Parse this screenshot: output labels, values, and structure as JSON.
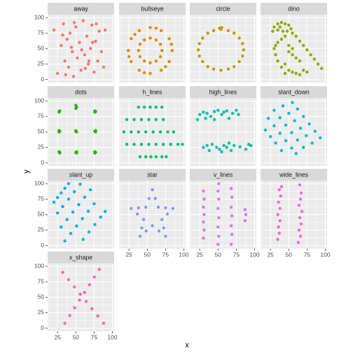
{
  "chart_data": {
    "type": "scatter",
    "xlabel": "x",
    "ylabel": "y",
    "xlim": [
      11.4,
      102.4
    ],
    "ylim": [
      -4.97,
      104.7
    ],
    "xticks": [
      25,
      50,
      75,
      100
    ],
    "yticks": [
      0,
      25,
      50,
      75,
      100
    ],
    "grid": true,
    "facets": [
      {
        "name": "away",
        "color": "#F8766D",
        "x": [
          20,
          25,
          30,
          33,
          35,
          38,
          40,
          42,
          45,
          47,
          50,
          52,
          55,
          57,
          60,
          62,
          65,
          67,
          70,
          72,
          75,
          77,
          80,
          82,
          85,
          88,
          90,
          32,
          44,
          58,
          68,
          78,
          36,
          48,
          63,
          73
        ],
        "y": [
          80,
          10,
          55,
          90,
          30,
          65,
          20,
          75,
          45,
          5,
          85,
          35,
          60,
          15,
          95,
          40,
          70,
          25,
          50,
          88,
          12,
          62,
          30,
          78,
          45,
          20,
          80,
          72,
          52,
          48,
          30,
          90,
          8,
          92,
          18,
          60
        ]
      },
      {
        "name": "bullseye",
        "color": "#E18A00",
        "x": [
          84,
          80,
          69,
          54,
          39,
          28,
          24,
          28,
          39,
          54,
          69,
          80,
          70,
          68,
          62,
          54,
          46,
          40,
          38,
          40,
          46,
          54,
          62,
          68,
          83,
          62,
          33,
          25,
          46,
          75
        ],
        "y": [
          47,
          66,
          79,
          84,
          79,
          66,
          47,
          29,
          15,
          10,
          15,
          29,
          47,
          57,
          64,
          67,
          64,
          57,
          47,
          37,
          30,
          27,
          30,
          37,
          57,
          83,
          73,
          37,
          11,
          21
        ]
      },
      {
        "name": "circle",
        "color": "#BE9C00",
        "x": [
          85,
          83.5,
          79,
          72,
          64,
          54,
          44,
          36,
          29,
          24.5,
          23,
          24.5,
          29,
          36,
          44,
          54,
          64,
          72,
          79,
          83.5,
          55,
          52
        ],
        "y": [
          48,
          58,
          67,
          75,
          79,
          81,
          79,
          75,
          67,
          58,
          48,
          38,
          29,
          21,
          17,
          15,
          17,
          21,
          29,
          38,
          84,
          83
        ]
      },
      {
        "name": "dino",
        "color": "#8CAB00",
        "x": [
          30,
          35,
          40,
          45,
          50,
          53,
          48,
          42,
          35,
          28,
          45,
          40,
          35,
          32,
          30,
          32,
          35,
          40,
          45,
          55,
          60,
          65,
          70,
          75,
          80,
          85,
          90,
          95,
          50,
          55,
          60,
          65,
          50,
          55,
          60,
          65,
          70,
          75,
          45,
          50,
          55,
          38
        ],
        "y": [
          85,
          90,
          92,
          90,
          88,
          82,
          78,
          78,
          80,
          78,
          70,
          65,
          60,
          55,
          50,
          40,
          30,
          20,
          10,
          75,
          70,
          62,
          55,
          48,
          40,
          33,
          25,
          18,
          45,
          40,
          35,
          30,
          15,
          12,
          10,
          8,
          15,
          12,
          25,
          55,
          50,
          85
        ]
      },
      {
        "name": "dots",
        "color": "#24B700",
        "x": [
          27,
          28,
          27,
          27,
          28,
          27,
          28,
          27,
          28,
          50,
          51,
          50,
          50,
          51,
          50,
          51,
          50,
          51,
          76,
          77,
          76,
          77,
          76,
          77,
          76,
          77,
          76
        ],
        "y": [
          83,
          84,
          82,
          52,
          51,
          50,
          17,
          18,
          16,
          93,
          90,
          88,
          52,
          50,
          51,
          18,
          17,
          16,
          84,
          83,
          82,
          52,
          51,
          50,
          18,
          17,
          16
        ]
      },
      {
        "name": "h_lines",
        "color": "#00BE70",
        "x": [
          40,
          48,
          55,
          62,
          70,
          76,
          22,
          32,
          42,
          52,
          62,
          72,
          82,
          92,
          98,
          18,
          28,
          38,
          48,
          58,
          68,
          78,
          86,
          22,
          32,
          42,
          52,
          62,
          72,
          38,
          46,
          54,
          62,
          70
        ],
        "y": [
          10,
          10,
          10,
          10,
          10,
          10,
          30,
          30,
          30,
          30,
          30,
          30,
          30,
          30,
          30,
          50,
          50,
          50,
          50,
          50,
          50,
          50,
          50,
          70,
          70,
          70,
          70,
          70,
          70,
          90,
          90,
          90,
          90,
          90
        ]
      },
      {
        "name": "high_lines",
        "color": "#00C1AB",
        "x": [
          22,
          25,
          30,
          35,
          40,
          45,
          50,
          55,
          58,
          62,
          65,
          70,
          75,
          78,
          45,
          33,
          30,
          35,
          38,
          42,
          48,
          52,
          55,
          58,
          62,
          65,
          68,
          72,
          80,
          88,
          95,
          92
        ],
        "y": [
          70,
          78,
          82,
          80,
          75,
          83,
          85,
          78,
          82,
          84,
          72,
          80,
          85,
          78,
          70,
          72,
          25,
          28,
          20,
          30,
          25,
          22,
          18,
          28,
          25,
          32,
          20,
          28,
          26,
          22,
          28,
          30
        ]
      },
      {
        "name": "slant_down",
        "color": "#00BBDA",
        "x": [
          55,
          62,
          70,
          78,
          86,
          93,
          42,
          50,
          58,
          66,
          74,
          82,
          30,
          38,
          46,
          54,
          62,
          70,
          22,
          30,
          38,
          46,
          54,
          60,
          18,
          25,
          32,
          40
        ],
        "y": [
          97.5,
          87,
          75,
          63,
          51,
          40.5,
          92,
          80,
          68,
          56,
          44,
          32,
          85,
          73,
          61,
          49,
          37,
          25,
          72,
          60,
          48,
          36,
          24,
          15,
          53,
          42.5,
          32,
          20
        ]
      },
      {
        "name": "slant_up",
        "color": "#00ACFC",
        "x": [
          20,
          25,
          30,
          35,
          40,
          25,
          32,
          40,
          48,
          56,
          30,
          38,
          46,
          54,
          62,
          70,
          35,
          43,
          51,
          59,
          67,
          75,
          60,
          68,
          76,
          84,
          90
        ],
        "y": [
          70,
          77.5,
          85,
          92.5,
          100,
          52.5,
          63,
          75,
          87,
          99,
          30,
          42,
          54,
          66,
          78,
          90,
          7.5,
          19.5,
          31.5,
          43.5,
          55.5,
          67.5,
          10,
          22,
          34,
          46,
          55
        ]
      },
      {
        "name": "star",
        "color": "#8B93FF",
        "x": [
          57,
          65,
          85,
          70,
          75,
          57,
          40,
          45,
          28,
          48,
          61,
          75,
          77.5,
          72.5,
          66,
          48.5,
          42.5,
          36.5,
          38,
          52.5
        ],
        "y": [
          90,
          62,
          60,
          42,
          15,
          32,
          15,
          42,
          60,
          62,
          76,
          61,
          51,
          28.5,
          23.5,
          23.5,
          28.5,
          51,
          61,
          76
        ]
      },
      {
        "name": "v_lines",
        "color": "#D575FE",
        "x": [
          30,
          31,
          30,
          31,
          30,
          31,
          30,
          50,
          51,
          50,
          51,
          50,
          51,
          50,
          51,
          68,
          69,
          68,
          69,
          68,
          69,
          68,
          87,
          88,
          87
        ],
        "y": [
          12,
          25,
          38,
          50,
          62,
          75,
          88,
          2,
          15,
          30,
          45,
          60,
          75,
          88,
          100,
          2,
          18,
          32,
          48,
          62,
          78,
          92,
          40,
          50,
          58
        ]
      },
      {
        "name": "wide_lines",
        "color": "#F962DD",
        "x": [
          35,
          37,
          36,
          38,
          35,
          38,
          36,
          39,
          37,
          40,
          63,
          66,
          64,
          67,
          65,
          68,
          64,
          66,
          67,
          65
        ],
        "y": [
          10,
          20,
          30,
          40,
          50,
          60,
          70,
          80,
          90,
          95,
          5,
          15,
          25,
          35,
          45,
          55,
          65,
          75,
          85,
          98
        ]
      },
      {
        "name": "x_shape",
        "color": "#FF65AC",
        "x": [
          32,
          40,
          48,
          56,
          64,
          72,
          80,
          88,
          35,
          41.7,
          48.4,
          55.1,
          61.9,
          68.6,
          75.3,
          82
        ],
        "y": [
          90,
          78.3,
          66.6,
          54.9,
          43.1,
          31.4,
          19.7,
          8,
          8,
          20.4,
          32.9,
          45.3,
          57.7,
          70.1,
          82.6,
          95
        ]
      }
    ]
  }
}
